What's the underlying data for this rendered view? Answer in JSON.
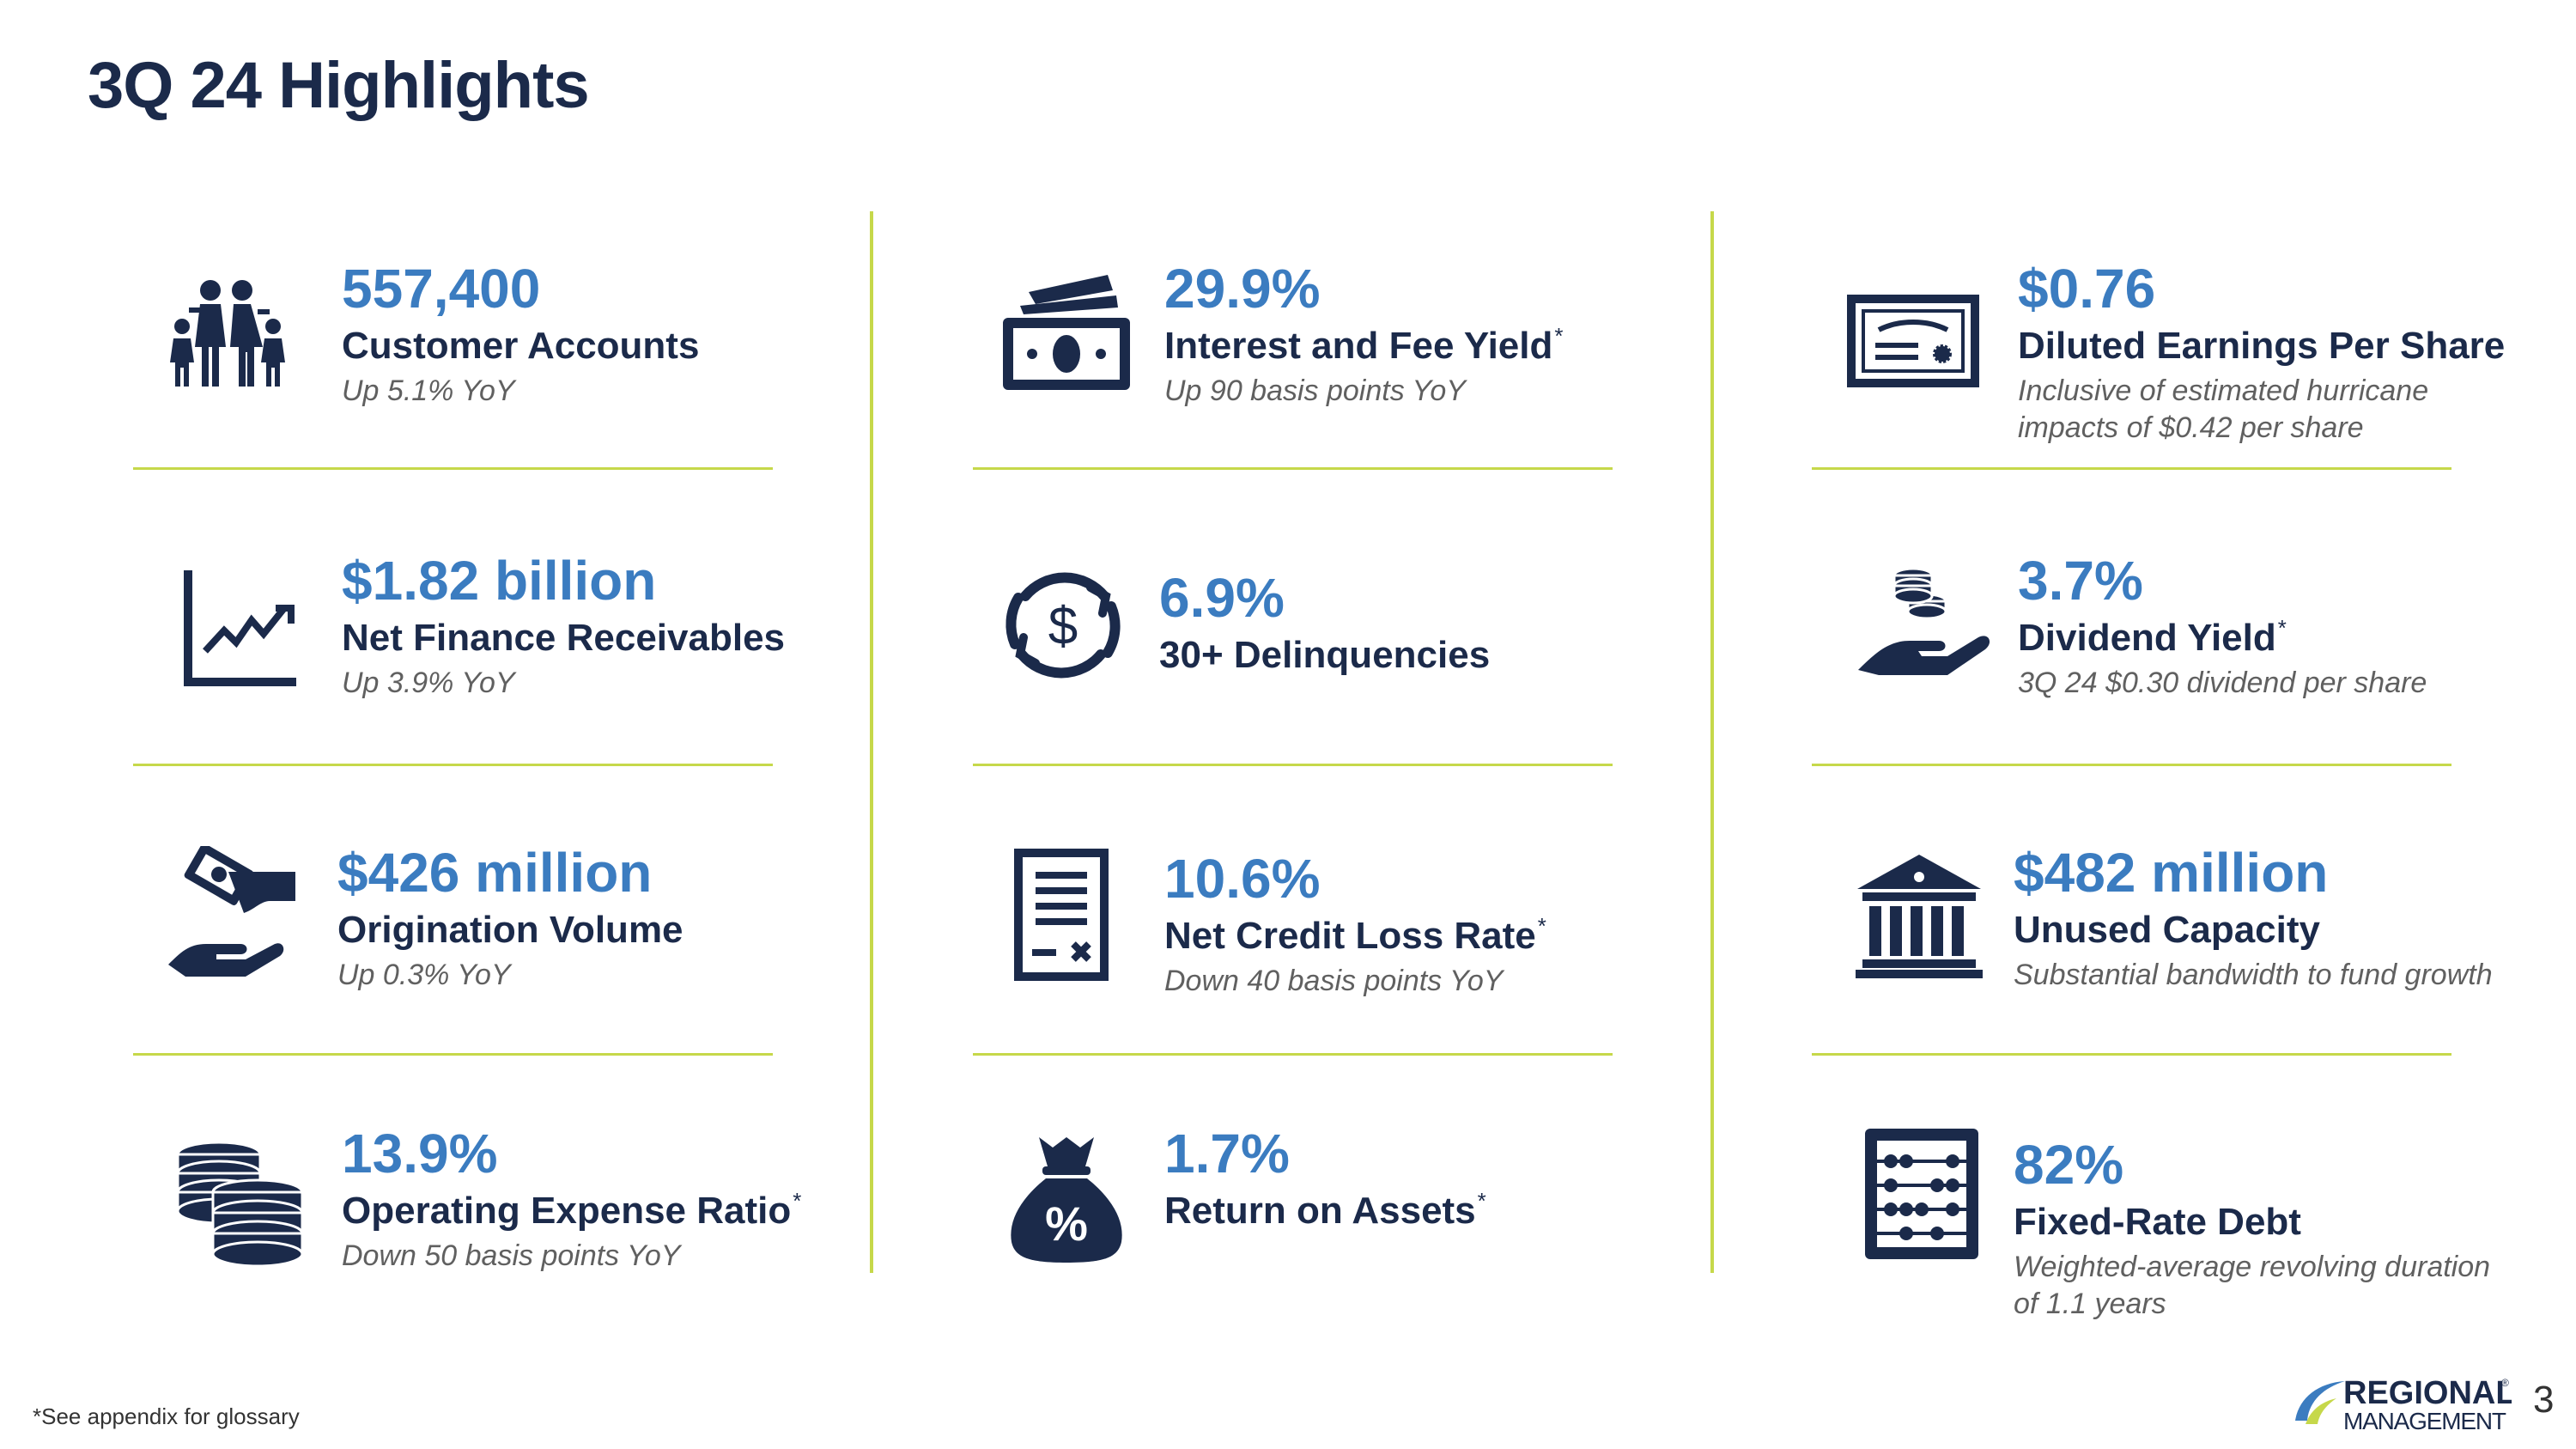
{
  "title": "3Q 24 Highlights",
  "metrics": [
    {
      "value": "557,400",
      "label": "Customer Accounts",
      "mark": "",
      "sub": "Up 5.1% YoY",
      "icon": "family-icon"
    },
    {
      "value": "$1.82 billion",
      "label": "Net Finance Receivables",
      "mark": "",
      "sub": "Up 3.9% YoY",
      "icon": "trending-chart-icon"
    },
    {
      "value": "$426 million",
      "label": "Origination Volume",
      "mark": "",
      "sub": "Up 0.3% YoY",
      "icon": "cash-hand-icon"
    },
    {
      "value": "13.9%",
      "label": "Operating Expense Ratio",
      "mark": "*",
      "sub": "Down 50 basis points YoY",
      "icon": "coin-stacks-icon"
    },
    {
      "value": "29.9%",
      "label": "Interest and Fee Yield",
      "mark": "*",
      "sub": "Up 90 basis points YoY",
      "icon": "banknotes-icon"
    },
    {
      "value": "6.9%",
      "label": "30+ Delinquencies",
      "mark": "",
      "sub": "",
      "icon": "dollar-cycle-icon"
    },
    {
      "value": "10.6%",
      "label": "Net Credit Loss Rate",
      "mark": "*",
      "sub": "Down 40 basis points YoY",
      "icon": "document-icon"
    },
    {
      "value": "1.7%",
      "label": "Return on Assets",
      "mark": "*",
      "sub": "",
      "icon": "money-bag-percent-icon"
    },
    {
      "value": "$0.76",
      "label": "Diluted Earnings Per Share",
      "mark": "",
      "sub": "Inclusive of estimated hurricane impacts of $0.42 per share",
      "icon": "certificate-icon"
    },
    {
      "value": "3.7%",
      "label": "Dividend Yield",
      "mark": "*",
      "sub": "3Q 24 $0.30 dividend per share",
      "icon": "coins-hand-icon"
    },
    {
      "value": "$482 million",
      "label": "Unused Capacity",
      "mark": "",
      "sub": "Substantial bandwidth to fund growth",
      "icon": "bank-building-icon"
    },
    {
      "value": "82%",
      "label": "Fixed-Rate Debt",
      "mark": "",
      "sub": "Weighted-average revolving duration of 1.1 years",
      "icon": "abacus-icon"
    }
  ],
  "footnote": "*See appendix for glossary",
  "logo": {
    "line1": "REGIONAL",
    "line2": "MANAGEMENT",
    "mark": "®"
  },
  "page_number": "3",
  "colors": {
    "navy": "#1b2a4a",
    "blue": "#3b7cc0",
    "divider": "#c6d84a"
  }
}
